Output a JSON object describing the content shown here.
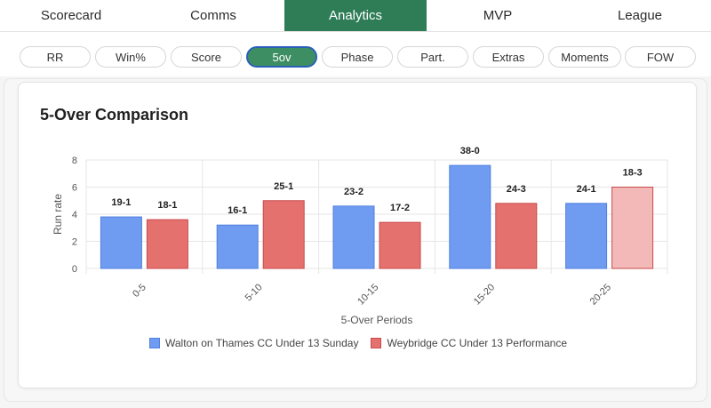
{
  "tabs": [
    {
      "label": "Scorecard",
      "active": false
    },
    {
      "label": "Comms",
      "active": false
    },
    {
      "label": "Analytics",
      "active": true
    },
    {
      "label": "MVP",
      "active": false
    },
    {
      "label": "League",
      "active": false
    }
  ],
  "subtabs": [
    {
      "label": "RR",
      "active": false
    },
    {
      "label": "Win%",
      "active": false
    },
    {
      "label": "Score",
      "active": false
    },
    {
      "label": "5ov",
      "active": true
    },
    {
      "label": "Phase",
      "active": false
    },
    {
      "label": "Part.",
      "active": false
    },
    {
      "label": "Extras",
      "active": false
    },
    {
      "label": "Moments",
      "active": false
    },
    {
      "label": "FOW",
      "active": false
    }
  ],
  "card": {
    "title": "5-Over Comparison"
  },
  "colors": {
    "accent": "#2e7d57",
    "series1_fill": "#6f9cf0",
    "series1_stroke": "#4f7fe0",
    "series2_fill": "#e5716f",
    "series2_stroke": "#c84b4b",
    "series2_highlight_fill": "#f2b9b8"
  },
  "chart_data": {
    "type": "bar",
    "title": "5-Over Comparison",
    "xlabel": "5-Over Periods",
    "ylabel": "Run rate",
    "ylim": [
      0,
      8
    ],
    "yticks": [
      0,
      2,
      4,
      6,
      8
    ],
    "grid": true,
    "legend_position": "bottom",
    "categories": [
      "0-5",
      "5-10",
      "10-15",
      "15-20",
      "20-25"
    ],
    "series": [
      {
        "name": "Walton on Thames CC Under 13 Sunday",
        "values": [
          3.8,
          3.2,
          4.6,
          7.6,
          4.8
        ],
        "labels": [
          "19-1",
          "16-1",
          "23-2",
          "38-0",
          "24-1"
        ]
      },
      {
        "name": "Weybridge CC Under 13 Performance",
        "values": [
          3.6,
          5.0,
          3.4,
          4.8,
          6.0
        ],
        "labels": [
          "18-1",
          "25-1",
          "17-2",
          "24-3",
          "18-3"
        ],
        "highlighted_index": 4
      }
    ]
  }
}
